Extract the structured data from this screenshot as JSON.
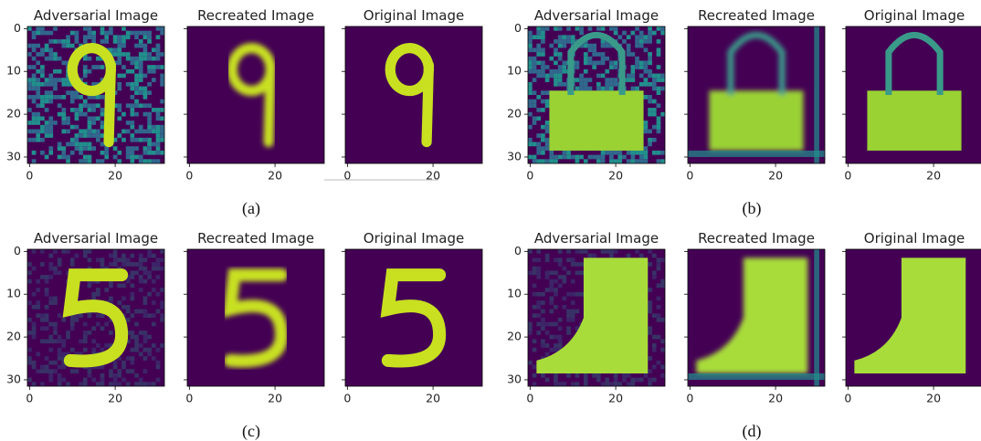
{
  "panels": [
    {
      "caption": "(a)",
      "plots": [
        {
          "title": "Adversarial Image"
        },
        {
          "title": "Recreated Image"
        },
        {
          "title": "Original Image"
        }
      ]
    },
    {
      "caption": "(b)",
      "plots": [
        {
          "title": "Adversarial Image"
        },
        {
          "title": "Recreated Image"
        },
        {
          "title": "Original Image"
        }
      ]
    },
    {
      "caption": "(c)",
      "plots": [
        {
          "title": "Adversarial Image"
        },
        {
          "title": "Recreated Image"
        },
        {
          "title": "Original Image"
        }
      ]
    },
    {
      "caption": "(d)",
      "plots": [
        {
          "title": "Adversarial Image"
        },
        {
          "title": "Recreated Image"
        },
        {
          "title": "Original Image"
        }
      ]
    }
  ],
  "yticks": [
    0,
    10,
    20,
    30
  ],
  "xticks": [
    0,
    20
  ]
}
